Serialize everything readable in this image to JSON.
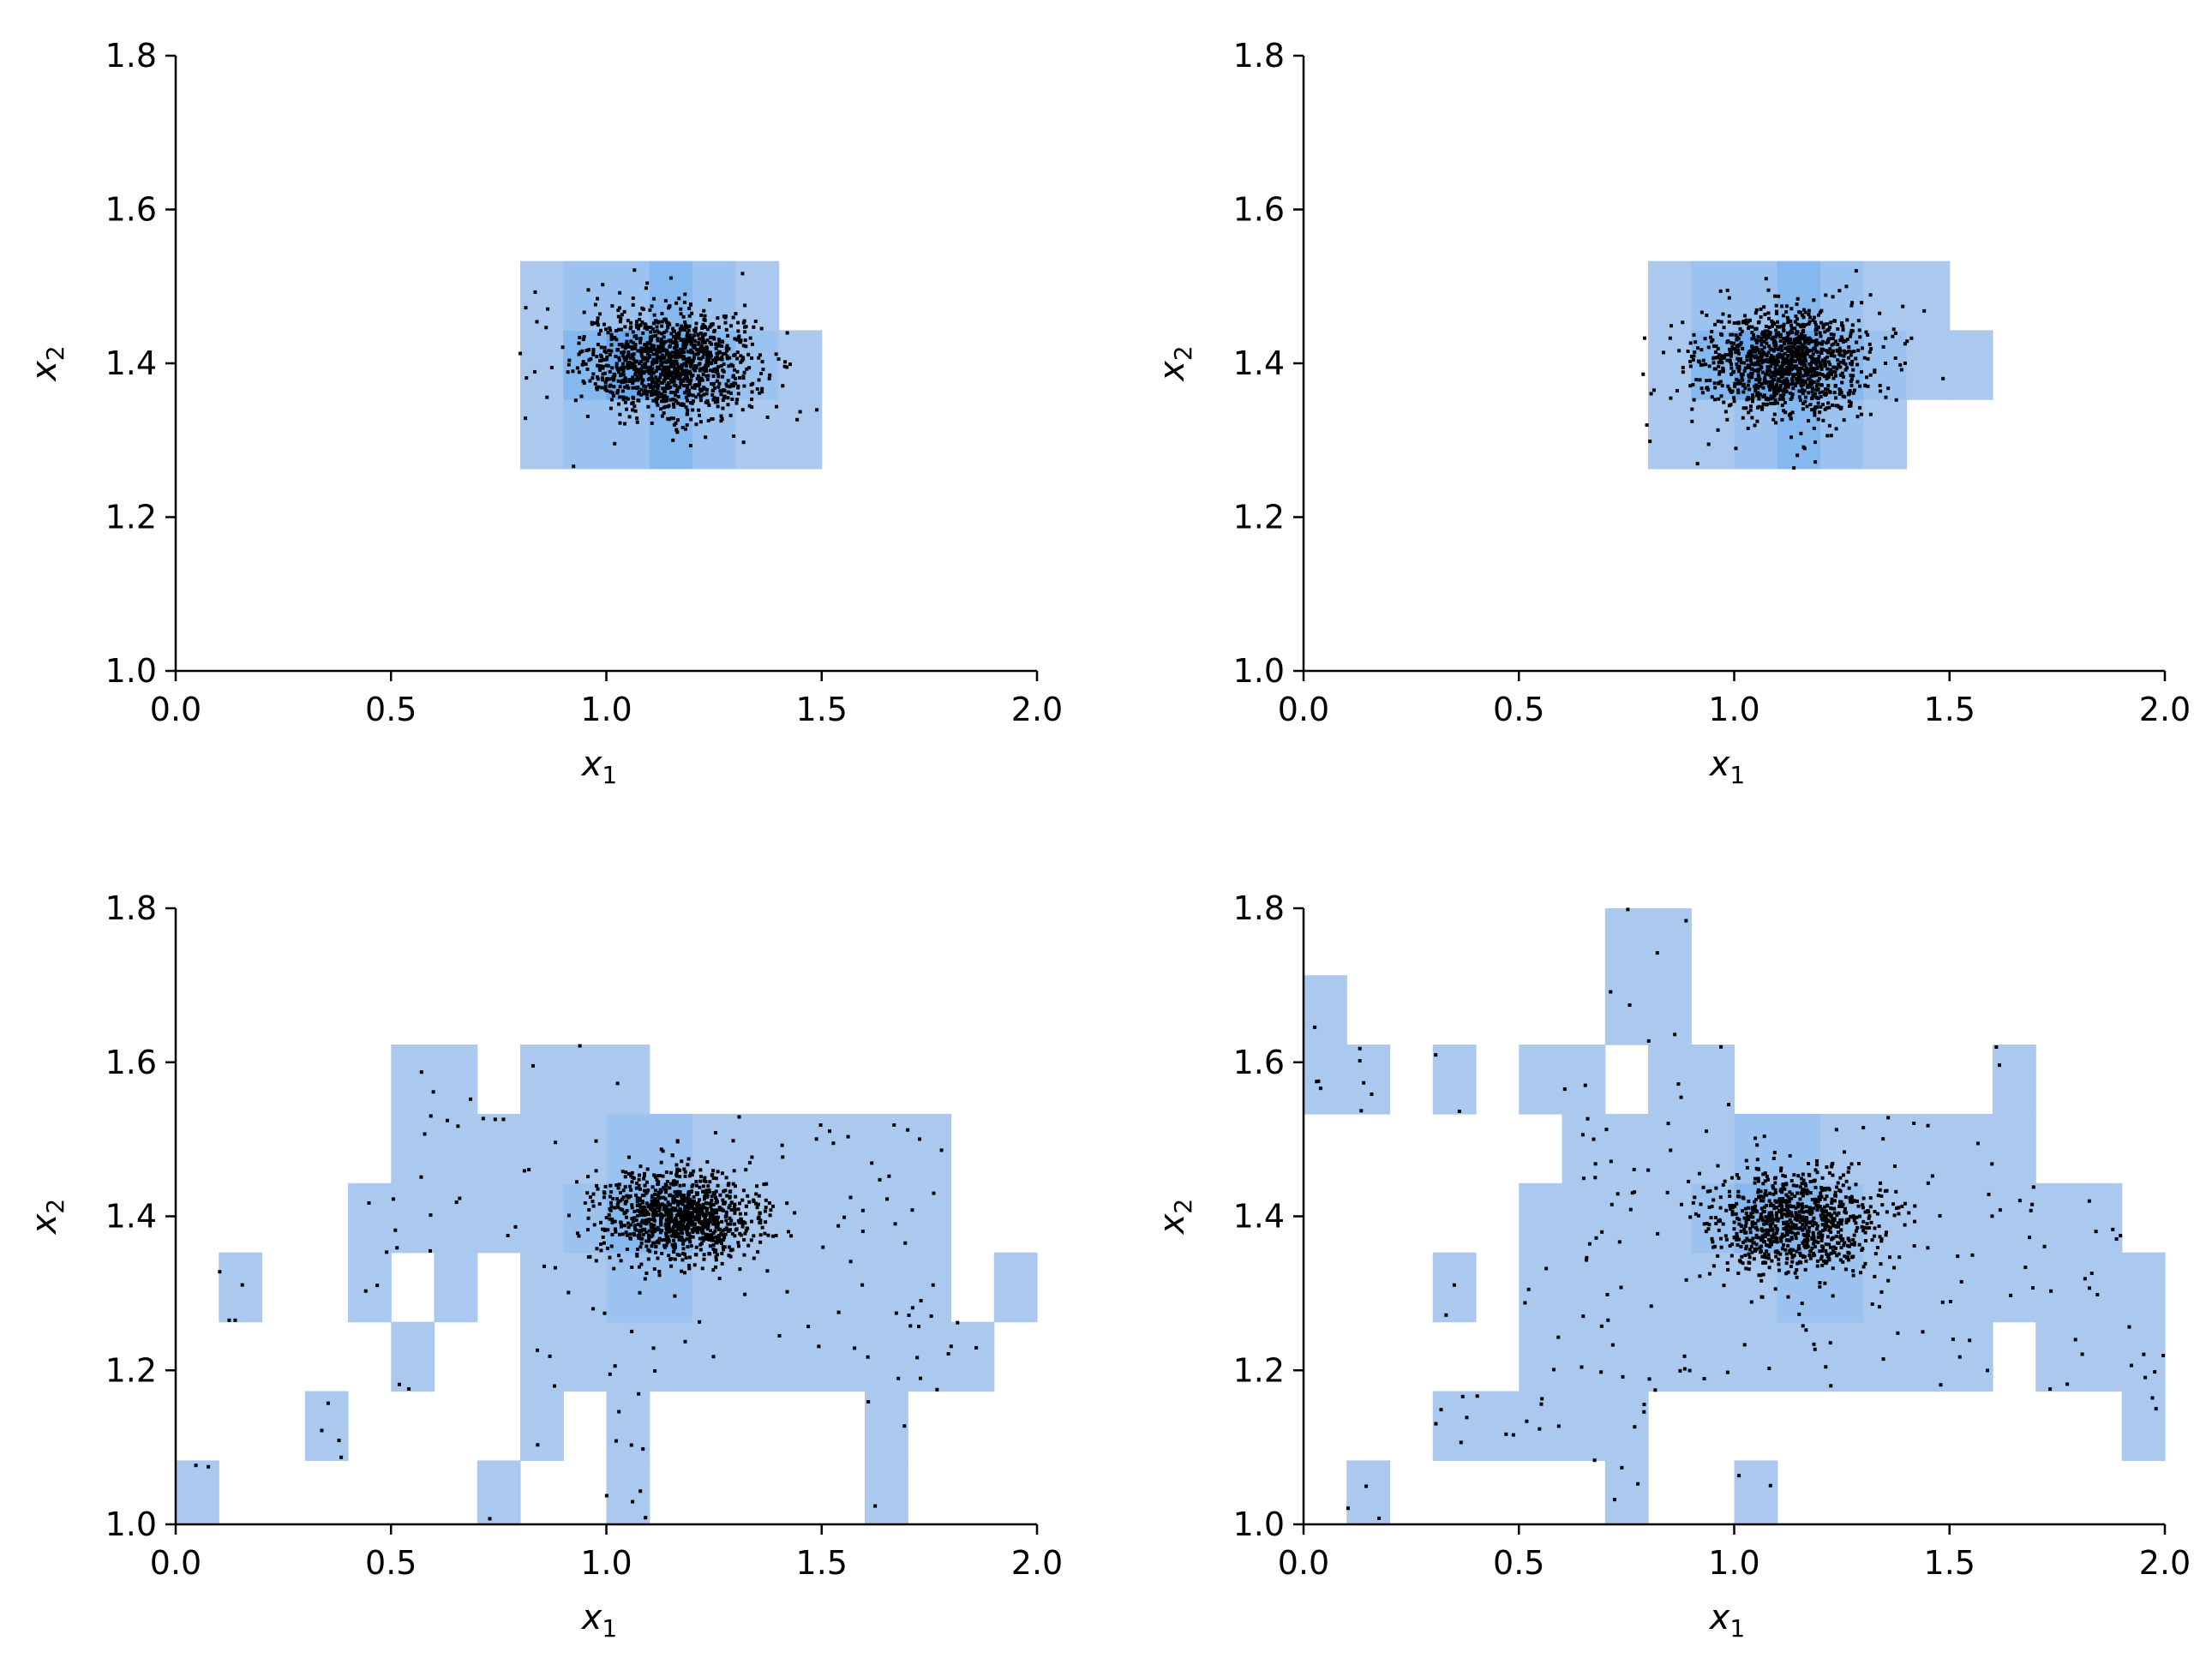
{
  "colors": {
    "background": "#ffffff",
    "hist_fill": "#abc8ee",
    "hist_dense": "#6aaaf0",
    "points": "#000000",
    "axes": "#000000"
  },
  "chart_data": [
    {
      "type": "scatter",
      "overlay": "2d-histogram",
      "xlim": [
        0.0,
        2.0
      ],
      "ylim": [
        1.0,
        1.8
      ],
      "xticks": [
        "0.0",
        "0.5",
        "1.0",
        "1.5",
        "2.0"
      ],
      "yticks": [
        "1.0",
        "1.2",
        "1.4",
        "1.6",
        "1.8"
      ],
      "xlabel": "x",
      "xlabel_sub": "1",
      "ylabel": "x",
      "ylabel_sub": "2",
      "grid": false,
      "bins": {
        "cell_w": 0.1,
        "cell_h": 0.09,
        "x0": 0.0,
        "y0": 0.993,
        "cells": [
          [
            8,
            3,
            1
          ],
          [
            9,
            3,
            2
          ],
          [
            10,
            3,
            2
          ],
          [
            11,
            3,
            3
          ],
          [
            12,
            3,
            2
          ],
          [
            13,
            3,
            1
          ],
          [
            14,
            3,
            1
          ],
          [
            8,
            4,
            1
          ],
          [
            9,
            4,
            3
          ],
          [
            10,
            4,
            4
          ],
          [
            11,
            4,
            4
          ],
          [
            12,
            4,
            3
          ],
          [
            13,
            4,
            2
          ],
          [
            14,
            4,
            1
          ],
          [
            8,
            5,
            1
          ],
          [
            9,
            5,
            2
          ],
          [
            10,
            5,
            2
          ],
          [
            11,
            5,
            3
          ],
          [
            12,
            5,
            2
          ],
          [
            13,
            5,
            1
          ]
        ]
      },
      "points": {
        "count": 1200,
        "center": [
          1.15,
          1.4
        ],
        "spread": [
          0.1,
          0.035
        ],
        "outliers": 20
      }
    },
    {
      "type": "scatter",
      "overlay": "2d-histogram",
      "xlim": [
        0.0,
        2.0
      ],
      "ylim": [
        1.0,
        1.8
      ],
      "xticks": [
        "0.0",
        "0.5",
        "1.0",
        "1.5",
        "2.0"
      ],
      "yticks": [
        "1.0",
        "1.2",
        "1.4",
        "1.6",
        "1.8"
      ],
      "xlabel": "x",
      "xlabel_sub": "1",
      "ylabel": "x",
      "ylabel_sub": "2",
      "grid": false,
      "bins": {
        "cell_w": 0.1,
        "cell_h": 0.09,
        "x0": 0.0,
        "y0": 0.993,
        "cells": [
          [
            8,
            3,
            1
          ],
          [
            9,
            3,
            1
          ],
          [
            10,
            3,
            2
          ],
          [
            11,
            3,
            3
          ],
          [
            12,
            3,
            2
          ],
          [
            13,
            3,
            1
          ],
          [
            8,
            4,
            1
          ],
          [
            9,
            4,
            3
          ],
          [
            10,
            4,
            4
          ],
          [
            11,
            4,
            4
          ],
          [
            12,
            4,
            3
          ],
          [
            13,
            4,
            2
          ],
          [
            14,
            4,
            1
          ],
          [
            15,
            4,
            1
          ],
          [
            8,
            5,
            1
          ],
          [
            9,
            5,
            2
          ],
          [
            10,
            5,
            2
          ],
          [
            11,
            5,
            3
          ],
          [
            12,
            5,
            2
          ],
          [
            13,
            5,
            1
          ],
          [
            14,
            5,
            1
          ]
        ]
      },
      "points": {
        "count": 1200,
        "center": [
          1.12,
          1.4
        ],
        "spread": [
          0.1,
          0.035
        ],
        "outliers": 20
      }
    },
    {
      "type": "scatter",
      "overlay": "2d-histogram",
      "xlim": [
        0.0,
        2.0
      ],
      "ylim": [
        1.0,
        1.8
      ],
      "xticks": [
        "0.0",
        "0.5",
        "1.0",
        "1.5",
        "2.0"
      ],
      "yticks": [
        "1.0",
        "1.2",
        "1.4",
        "1.6",
        "1.8"
      ],
      "xlabel": "x",
      "xlabel_sub": "1",
      "ylabel": "x",
      "ylabel_sub": "2",
      "grid": false,
      "bins": {
        "cell_w": 0.1,
        "cell_h": 0.09,
        "x0": 0.0,
        "y0": 0.993,
        "cells": [
          [
            0,
            0,
            1
          ],
          [
            7,
            0,
            1
          ],
          [
            10,
            0,
            1
          ],
          [
            16,
            0,
            1
          ],
          [
            3,
            1,
            1
          ],
          [
            8,
            1,
            1
          ],
          [
            10,
            1,
            1
          ],
          [
            16,
            1,
            1
          ],
          [
            5,
            2,
            1
          ],
          [
            8,
            2,
            1
          ],
          [
            9,
            2,
            1
          ],
          [
            10,
            2,
            1
          ],
          [
            11,
            2,
            1
          ],
          [
            12,
            2,
            1
          ],
          [
            13,
            2,
            1
          ],
          [
            14,
            2,
            1
          ],
          [
            15,
            2,
            1
          ],
          [
            16,
            2,
            1
          ],
          [
            17,
            2,
            1
          ],
          [
            18,
            2,
            1
          ],
          [
            1,
            3,
            1
          ],
          [
            4,
            3,
            1
          ],
          [
            6,
            3,
            1
          ],
          [
            8,
            3,
            1
          ],
          [
            9,
            3,
            1
          ],
          [
            10,
            3,
            2
          ],
          [
            11,
            3,
            2
          ],
          [
            12,
            3,
            1
          ],
          [
            13,
            3,
            1
          ],
          [
            14,
            3,
            1
          ],
          [
            15,
            3,
            1
          ],
          [
            16,
            3,
            1
          ],
          [
            17,
            3,
            1
          ],
          [
            19,
            3,
            1
          ],
          [
            4,
            4,
            1
          ],
          [
            5,
            4,
            1
          ],
          [
            6,
            4,
            1
          ],
          [
            7,
            4,
            1
          ],
          [
            8,
            4,
            1
          ],
          [
            9,
            4,
            2
          ],
          [
            10,
            4,
            3
          ],
          [
            11,
            4,
            3
          ],
          [
            12,
            4,
            2
          ],
          [
            13,
            4,
            1
          ],
          [
            14,
            4,
            1
          ],
          [
            15,
            4,
            1
          ],
          [
            16,
            4,
            1
          ],
          [
            17,
            4,
            1
          ],
          [
            5,
            5,
            1
          ],
          [
            6,
            5,
            1
          ],
          [
            7,
            5,
            1
          ],
          [
            8,
            5,
            1
          ],
          [
            9,
            5,
            1
          ],
          [
            10,
            5,
            2
          ],
          [
            11,
            5,
            2
          ],
          [
            12,
            5,
            1
          ],
          [
            13,
            5,
            1
          ],
          [
            14,
            5,
            1
          ],
          [
            15,
            5,
            1
          ],
          [
            16,
            5,
            1
          ],
          [
            17,
            5,
            1
          ],
          [
            5,
            6,
            1
          ],
          [
            6,
            6,
            1
          ],
          [
            8,
            6,
            1
          ],
          [
            9,
            6,
            1
          ],
          [
            10,
            6,
            1
          ]
        ]
      },
      "points": {
        "count": 1000,
        "center": [
          1.17,
          1.4
        ],
        "spread": [
          0.09,
          0.03
        ],
        "outliers": 150
      }
    },
    {
      "type": "scatter",
      "overlay": "2d-histogram",
      "xlim": [
        0.0,
        2.0
      ],
      "ylim": [
        1.0,
        1.8
      ],
      "xticks": [
        "0.0",
        "0.5",
        "1.0",
        "1.5",
        "2.0"
      ],
      "yticks": [
        "1.0",
        "1.2",
        "1.4",
        "1.6",
        "1.8"
      ],
      "xlabel": "x",
      "xlabel_sub": "1",
      "ylabel": "x",
      "ylabel_sub": "2",
      "grid": false,
      "bins": {
        "cell_w": 0.1,
        "cell_h": 0.09,
        "x0": 0.0,
        "y0": 0.993,
        "cells": [
          [
            1,
            0,
            1
          ],
          [
            7,
            0,
            1
          ],
          [
            10,
            0,
            1
          ],
          [
            3,
            1,
            1
          ],
          [
            4,
            1,
            1
          ],
          [
            5,
            1,
            1
          ],
          [
            6,
            1,
            1
          ],
          [
            7,
            1,
            1
          ],
          [
            19,
            1,
            1
          ],
          [
            5,
            2,
            1
          ],
          [
            6,
            2,
            1
          ],
          [
            7,
            2,
            1
          ],
          [
            8,
            2,
            1
          ],
          [
            9,
            2,
            1
          ],
          [
            10,
            2,
            1
          ],
          [
            11,
            2,
            1
          ],
          [
            12,
            2,
            1
          ],
          [
            13,
            2,
            1
          ],
          [
            14,
            2,
            1
          ],
          [
            15,
            2,
            1
          ],
          [
            17,
            2,
            1
          ],
          [
            18,
            2,
            1
          ],
          [
            19,
            2,
            1
          ],
          [
            3,
            3,
            1
          ],
          [
            5,
            3,
            1
          ],
          [
            6,
            3,
            1
          ],
          [
            7,
            3,
            1
          ],
          [
            8,
            3,
            1
          ],
          [
            9,
            3,
            1
          ],
          [
            10,
            3,
            1
          ],
          [
            11,
            3,
            2
          ],
          [
            12,
            3,
            2
          ],
          [
            13,
            3,
            1
          ],
          [
            14,
            3,
            1
          ],
          [
            15,
            3,
            1
          ],
          [
            16,
            3,
            1
          ],
          [
            17,
            3,
            1
          ],
          [
            18,
            3,
            1
          ],
          [
            19,
            3,
            1
          ],
          [
            5,
            4,
            1
          ],
          [
            6,
            4,
            1
          ],
          [
            7,
            4,
            1
          ],
          [
            8,
            4,
            1
          ],
          [
            9,
            4,
            2
          ],
          [
            10,
            4,
            3
          ],
          [
            11,
            4,
            3
          ],
          [
            12,
            4,
            2
          ],
          [
            13,
            4,
            1
          ],
          [
            14,
            4,
            1
          ],
          [
            15,
            4,
            1
          ],
          [
            16,
            4,
            1
          ],
          [
            17,
            4,
            1
          ],
          [
            18,
            4,
            1
          ],
          [
            6,
            5,
            1
          ],
          [
            7,
            5,
            1
          ],
          [
            8,
            5,
            1
          ],
          [
            9,
            5,
            1
          ],
          [
            10,
            5,
            2
          ],
          [
            11,
            5,
            2
          ],
          [
            12,
            5,
            1
          ],
          [
            13,
            5,
            1
          ],
          [
            14,
            5,
            1
          ],
          [
            15,
            5,
            1
          ],
          [
            16,
            5,
            1
          ],
          [
            0,
            6,
            1
          ],
          [
            1,
            6,
            1
          ],
          [
            3,
            6,
            1
          ],
          [
            5,
            6,
            1
          ],
          [
            6,
            6,
            1
          ],
          [
            8,
            6,
            1
          ],
          [
            9,
            6,
            1
          ],
          [
            16,
            6,
            1
          ],
          [
            0,
            7,
            1
          ],
          [
            7,
            7,
            1
          ],
          [
            8,
            7,
            1
          ],
          [
            7,
            8,
            1
          ],
          [
            8,
            8,
            1
          ]
        ]
      },
      "points": {
        "count": 900,
        "center": [
          1.14,
          1.39
        ],
        "spread": [
          0.1,
          0.035
        ],
        "outliers": 200
      }
    }
  ]
}
